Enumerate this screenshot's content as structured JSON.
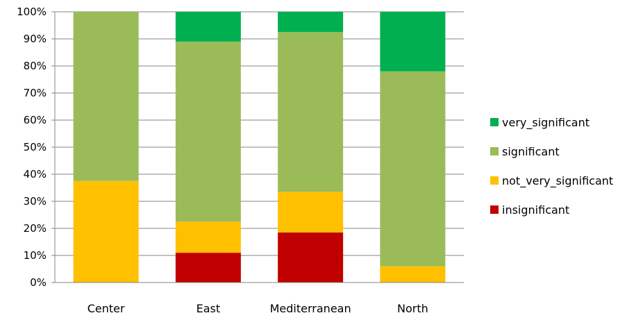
{
  "chart_data": {
    "type": "bar",
    "stacked": true,
    "percent": true,
    "categories": [
      "Center",
      "East",
      "Mediterranean",
      "North"
    ],
    "series": [
      {
        "name": "insignificant",
        "color": "#C00000",
        "values": [
          0,
          11,
          18.5,
          0
        ]
      },
      {
        "name": "not_very_significant",
        "color": "#FFC000",
        "values": [
          37.5,
          11.5,
          15,
          6
        ]
      },
      {
        "name": "significant",
        "color": "#9BBB59",
        "values": [
          62.5,
          66.5,
          59,
          72
        ]
      },
      {
        "name": "very_significant",
        "color": "#00B050",
        "values": [
          0,
          11,
          7.5,
          22
        ]
      }
    ],
    "yticks": [
      "0%",
      "10%",
      "20%",
      "30%",
      "40%",
      "50%",
      "60%",
      "70%",
      "80%",
      "90%",
      "100%"
    ],
    "ylim": [
      0,
      100
    ],
    "grid": true,
    "legend": {
      "position": "right",
      "order": [
        "very_significant",
        "significant",
        "not_very_significant",
        "insignificant"
      ]
    }
  }
}
